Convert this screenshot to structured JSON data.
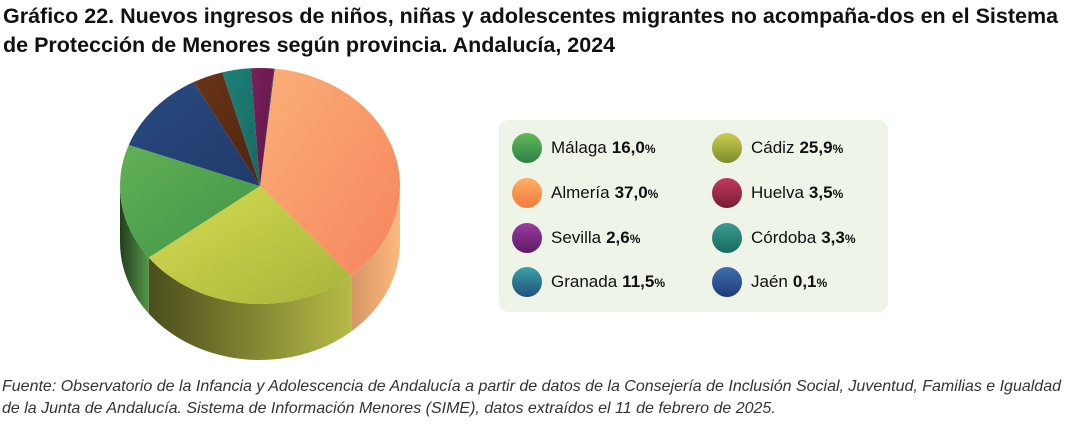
{
  "title": "Gráfico 22. Nuevos ingresos de niños, niñas y adolescentes migrantes no acompaña-dos en el Sistema de Protección de Menores según provincia. Andalucía, 2024",
  "source": "Fuente: Observatorio de la Infancia y Adolescencia de Andalucía a partir de datos de la Consejería de Inclusión Social, Juventud, Familias e Igualdad de la Junta de Andalucía. Sistema de Información Menores (SIME), datos extraídos el 11 de febrero de 2025.",
  "chart_data": {
    "type": "pie",
    "title": "Gráfico 22. Nuevos ingresos de niños, niñas y adolescentes migrantes no acompaña-dos en el Sistema de Protección de Menores según provincia. Andalucía, 2024",
    "unit": "%",
    "slices": [
      {
        "key": "almeria",
        "label": "Almería",
        "value": 37.0,
        "display": "37,0",
        "color": "#f6845e",
        "color2": "#fbb077"
      },
      {
        "key": "cadiz",
        "label": "Cádiz",
        "value": 25.9,
        "display": "25,9",
        "color": "#a6b43a",
        "color2": "#d6dc52"
      },
      {
        "key": "malaga",
        "label": "Málaga",
        "value": 16.0,
        "display": "16,0",
        "color": "#3e9447",
        "color2": "#62b055"
      },
      {
        "key": "granada",
        "label": "Granada",
        "value": 11.5,
        "display": "11,5",
        "color": "#1f3b6a",
        "color2": "#2a4a82"
      },
      {
        "key": "huelva",
        "label": "Huelva",
        "value": 3.5,
        "display": "3,5",
        "color": "#4f2410",
        "color2": "#6b3418"
      },
      {
        "key": "cordoba",
        "label": "Córdoba",
        "value": 3.3,
        "display": "3,3",
        "color": "#166a63",
        "color2": "#1d8077"
      },
      {
        "key": "sevilla",
        "label": "Sevilla",
        "value": 2.6,
        "display": "2,6",
        "color": "#5e1746",
        "color2": "#7a1f5c"
      },
      {
        "key": "jaen",
        "label": "Jaén",
        "value": 0.1,
        "display": "0,1",
        "color": "#24344f",
        "color2": "#2f4266"
      }
    ],
    "legend": {
      "placement": "right",
      "order": [
        "malaga",
        "cadiz",
        "almeria",
        "huelva",
        "sevilla",
        "cordoba",
        "granada",
        "jaen"
      ],
      "dot_colors": {
        "malaga": [
          "#62b955",
          "#2e8046"
        ],
        "cadiz": [
          "#c8cf4e",
          "#7f8a2c"
        ],
        "almeria": [
          "#ffb066",
          "#f27a3a"
        ],
        "huelva": [
          "#c03b5c",
          "#7a1c36"
        ],
        "sevilla": [
          "#9a3b9e",
          "#5e1a66"
        ],
        "cordoba": [
          "#3a9c8e",
          "#1a6a62"
        ],
        "granada": [
          "#3aa3a8",
          "#224f7a"
        ],
        "jaen": [
          "#3f6fb0",
          "#1f3a78"
        ]
      }
    }
  }
}
